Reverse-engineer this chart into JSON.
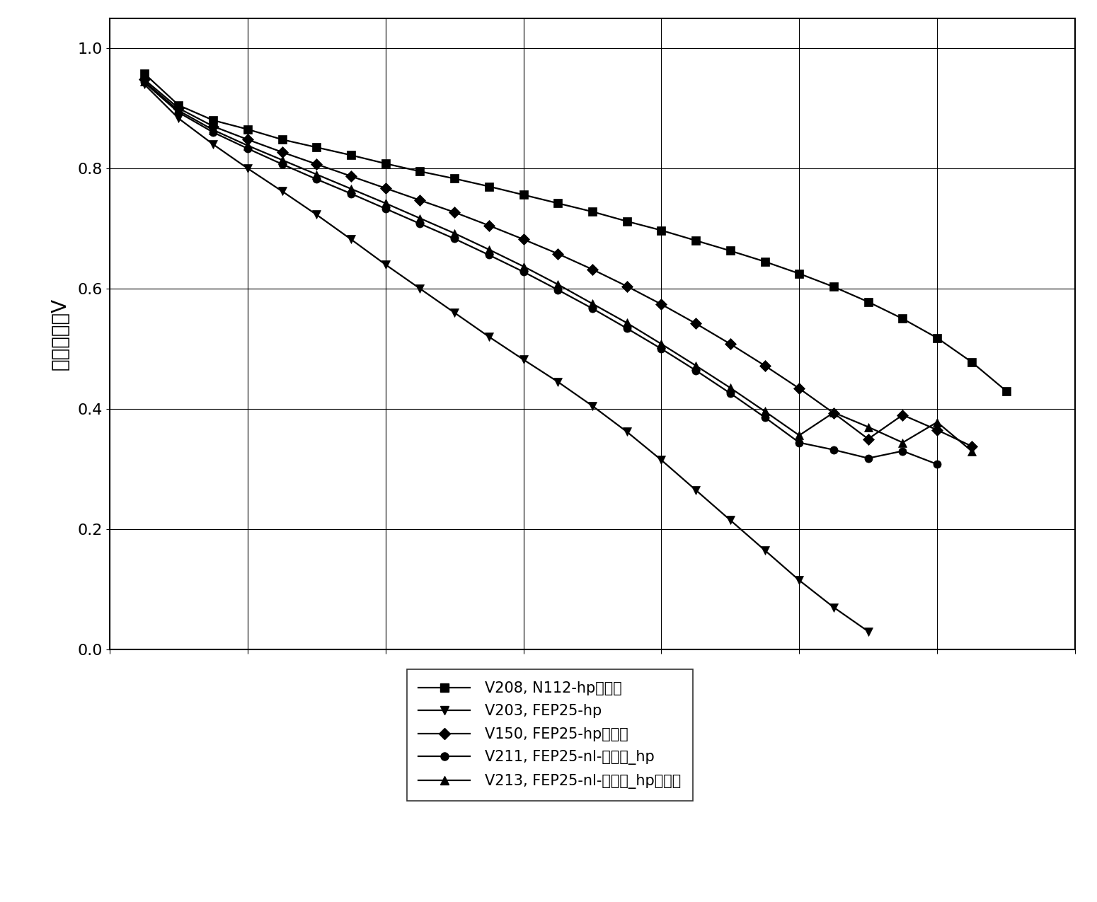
{
  "ylabel": "电池电压／V",
  "ylim": [
    0.0,
    1.05
  ],
  "yticks": [
    0.0,
    0.2,
    0.4,
    0.6,
    0.8,
    1.0
  ],
  "xlim": [
    0,
    1400
  ],
  "grid": true,
  "background_color": "#ffffff",
  "series": [
    {
      "label": "V208, N112-hp（湿）",
      "marker": "s",
      "x": [
        50,
        100,
        150,
        200,
        250,
        300,
        350,
        400,
        450,
        500,
        550,
        600,
        650,
        700,
        750,
        800,
        850,
        900,
        950,
        1000,
        1050,
        1100,
        1150,
        1200,
        1250,
        1300
      ],
      "y": [
        0.958,
        0.905,
        0.88,
        0.865,
        0.848,
        0.835,
        0.822,
        0.808,
        0.795,
        0.783,
        0.77,
        0.756,
        0.742,
        0.728,
        0.712,
        0.697,
        0.68,
        0.663,
        0.645,
        0.625,
        0.603,
        0.578,
        0.55,
        0.518,
        0.478,
        0.43
      ]
    },
    {
      "label": "V203, FEP25-hp",
      "marker": "v",
      "x": [
        50,
        100,
        150,
        200,
        250,
        300,
        350,
        400,
        450,
        500,
        550,
        600,
        650,
        700,
        750,
        800,
        850,
        900,
        950,
        1000,
        1050,
        1100
      ],
      "y": [
        0.94,
        0.883,
        0.84,
        0.8,
        0.762,
        0.723,
        0.682,
        0.64,
        0.6,
        0.56,
        0.52,
        0.482,
        0.445,
        0.405,
        0.362,
        0.315,
        0.265,
        0.215,
        0.165,
        0.115,
        0.07,
        0.03
      ]
    },
    {
      "label": "V150, FEP25-hp（湿）",
      "marker": "D",
      "x": [
        50,
        100,
        150,
        200,
        250,
        300,
        350,
        400,
        450,
        500,
        550,
        600,
        650,
        700,
        750,
        800,
        850,
        900,
        950,
        1000,
        1050,
        1100,
        1150,
        1200,
        1250
      ],
      "y": [
        0.948,
        0.9,
        0.87,
        0.848,
        0.827,
        0.807,
        0.787,
        0.767,
        0.747,
        0.727,
        0.705,
        0.682,
        0.658,
        0.632,
        0.604,
        0.574,
        0.542,
        0.508,
        0.472,
        0.434,
        0.393,
        0.35,
        0.39,
        0.365,
        0.338
      ]
    },
    {
      "label": "V211, FEP25-nl-柔和的_hp",
      "marker": "o",
      "x": [
        50,
        100,
        150,
        200,
        250,
        300,
        350,
        400,
        450,
        500,
        550,
        600,
        650,
        700,
        750,
        800,
        850,
        900,
        950,
        1000,
        1050,
        1100,
        1150,
        1200
      ],
      "y": [
        0.943,
        0.893,
        0.86,
        0.833,
        0.807,
        0.782,
        0.758,
        0.733,
        0.708,
        0.683,
        0.656,
        0.628,
        0.598,
        0.567,
        0.534,
        0.5,
        0.464,
        0.426,
        0.386,
        0.344,
        0.332,
        0.318,
        0.33,
        0.308
      ]
    },
    {
      "label": "V213, FEP25-nl-柔和的_hp（湿）",
      "marker": "^",
      "x": [
        50,
        100,
        150,
        200,
        250,
        300,
        350,
        400,
        450,
        500,
        550,
        600,
        650,
        700,
        750,
        800,
        850,
        900,
        950,
        1000,
        1050,
        1100,
        1150,
        1200,
        1250
      ],
      "y": [
        0.945,
        0.896,
        0.864,
        0.838,
        0.814,
        0.79,
        0.766,
        0.742,
        0.717,
        0.692,
        0.665,
        0.637,
        0.607,
        0.575,
        0.543,
        0.508,
        0.472,
        0.435,
        0.396,
        0.356,
        0.394,
        0.37,
        0.344,
        0.378,
        0.33
      ]
    }
  ],
  "legend_labels": [
    "V208, N112-hp（湿）",
    "V203, FEP25-hp",
    "V150, FEP25-hp（湿）",
    "V211, FEP25-nl-柔和的_hp",
    "V213, FEP25-nl-柔和的_hp（湿）"
  ],
  "legend_markers": [
    "s",
    "v",
    "D",
    "o",
    "^"
  ],
  "markersize": 8,
  "linewidth": 1.6,
  "fontsize_ylabel": 20,
  "fontsize_tick": 16,
  "fontsize_legend": 15
}
